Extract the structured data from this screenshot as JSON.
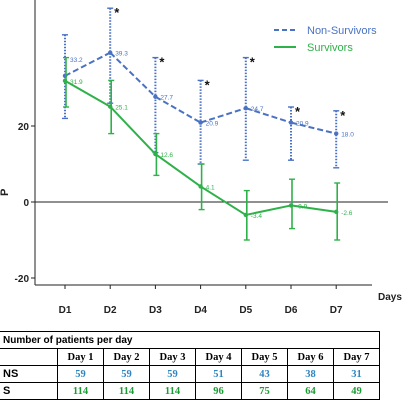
{
  "chart_data": {
    "type": "line",
    "categories": [
      "D1",
      "D2",
      "D3",
      "D4",
      "D5",
      "D6",
      "D7"
    ],
    "xlabel": "Days",
    "ylabel": "P",
    "ylim": [
      -25,
      50
    ],
    "yticks": [
      -20,
      0,
      20
    ],
    "ytick_labels": [
      "-20",
      "0",
      "20"
    ],
    "legend_position": "top-right",
    "series": [
      {
        "name": "Non-Survivors",
        "values": [
          33.2,
          39.3,
          27.7,
          20.9,
          24.7,
          20.9,
          18.0
        ],
        "labels": [
          "33.2",
          "39.3",
          "27.7",
          "20.9",
          "24.7",
          "20.9",
          "18.0"
        ],
        "err_low": [
          22,
          26,
          13,
          10,
          11,
          11,
          9
        ],
        "err_high": [
          44,
          51,
          38,
          32,
          38,
          25,
          24
        ],
        "color": "#4a72c4",
        "line_style": "dashed"
      },
      {
        "name": "Survivors",
        "values": [
          31.9,
          25.1,
          12.6,
          4.1,
          -3.4,
          -0.9,
          -2.6
        ],
        "labels": [
          "31.9",
          "25.1",
          "12.6",
          "4.1",
          "-3.4",
          "-0.9",
          "-2.6"
        ],
        "err_low": [
          25,
          18,
          7,
          -2,
          -10,
          -7,
          -10
        ],
        "err_high": [
          38,
          32,
          18,
          10,
          3,
          6,
          5
        ],
        "color": "#2fb14a",
        "line_style": "solid"
      }
    ],
    "significance_marker": "*",
    "significant_days": [
      1,
      2,
      3,
      4,
      5,
      6
    ]
  },
  "table": {
    "caption": "Number of patients per day",
    "headers": [
      "Day 1",
      "Day 2",
      "Day 3",
      "Day 4",
      "Day 5",
      "Day 6",
      "Day 7"
    ],
    "rows": [
      {
        "label": "NS",
        "values": [
          "59",
          "59",
          "59",
          "51",
          "43",
          "38",
          "31"
        ]
      },
      {
        "label": "S",
        "values": [
          "114",
          "114",
          "114",
          "96",
          "75",
          "64",
          "49"
        ]
      }
    ]
  }
}
